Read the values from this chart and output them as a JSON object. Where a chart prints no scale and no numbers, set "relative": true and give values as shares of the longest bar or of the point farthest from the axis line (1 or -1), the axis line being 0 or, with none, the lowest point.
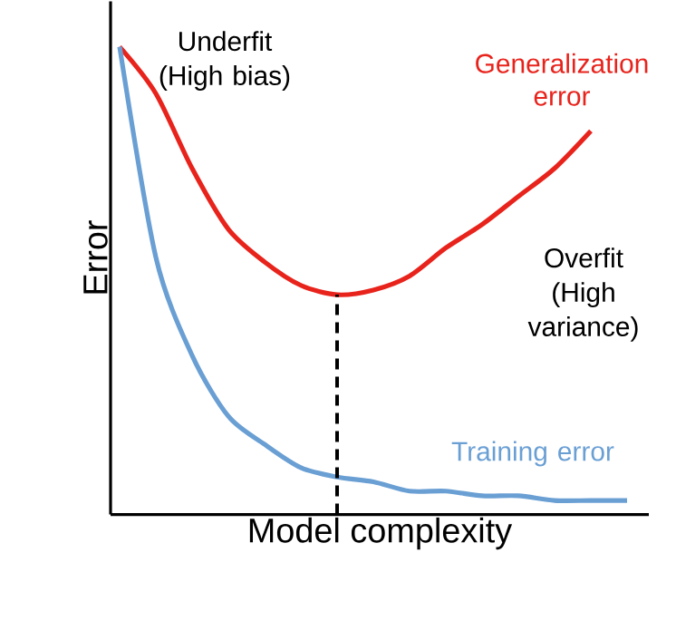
{
  "chart_data": {
    "type": "line",
    "relative": true,
    "xlabel": "Model complexity",
    "ylabel": "Error",
    "categories": [
      null,
      null,
      null,
      null,
      null,
      null,
      null,
      null,
      null,
      null,
      null,
      null,
      null,
      null,
      null
    ],
    "series": [
      {
        "name": "Generalization error",
        "color": "#e8231c",
        "values": [
          1.0,
          0.9,
          0.74,
          0.61,
          0.54,
          0.49,
          0.47,
          0.48,
          0.51,
          0.57,
          0.62,
          0.68,
          0.74,
          0.82,
          null
        ]
      },
      {
        "name": "Training error",
        "color": "#6a9fd4",
        "values": [
          1.0,
          0.55,
          0.34,
          0.21,
          0.15,
          0.1,
          0.08,
          0.07,
          0.05,
          0.05,
          0.04,
          0.04,
          0.03,
          0.03,
          0.03
        ]
      }
    ],
    "annotations": [
      "Underfit (High bias)",
      "Overfit (High variance)"
    ],
    "marker": "none",
    "line_style": "solid"
  }
}
